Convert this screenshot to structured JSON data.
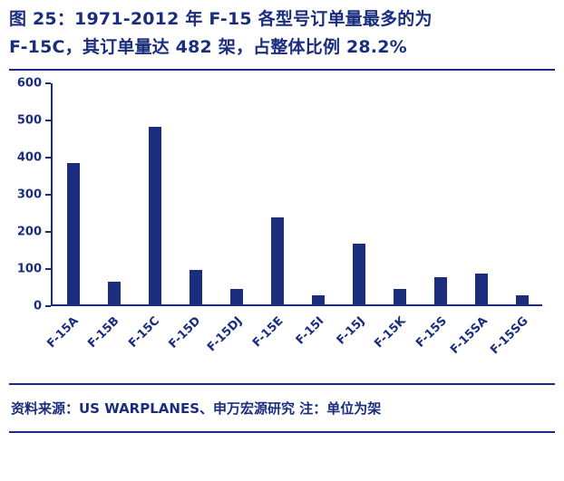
{
  "title": {
    "line1": "图 25：1971-2012 年 F-15 各型号订单量最多的为",
    "line2": "F-15C，其订单量达 482 架，占整体比例 28.2%"
  },
  "source": {
    "text": "资料来源：US WARPLANES、申万宏源研究 注：单位为架"
  },
  "colors": {
    "navy": "#1b2e7d",
    "background": "#ffffff"
  },
  "chart_data": {
    "type": "bar",
    "categories": [
      "F-15A",
      "F-15B",
      "F-15C",
      "F-15D",
      "F-15DJ",
      "F-15E",
      "F-15I",
      "F-15J",
      "F-15K",
      "F-15S",
      "F-15SA",
      "F-15SG"
    ],
    "values": [
      384,
      61,
      482,
      92,
      42,
      236,
      25,
      165,
      40,
      72,
      84,
      24
    ],
    "title": "",
    "xlabel": "",
    "ylabel": "",
    "ylim": [
      0,
      600
    ],
    "yticks": [
      0,
      100,
      200,
      300,
      400,
      500,
      600
    ],
    "grid": false,
    "legend": false,
    "bar_color": "#1b2e7d"
  }
}
